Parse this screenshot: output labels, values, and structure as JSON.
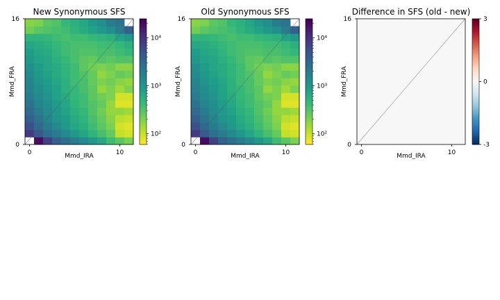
{
  "chart_data": [
    {
      "type": "heatmap",
      "title": "New Synonymous SFS",
      "xlabel": "Mmd_IRA",
      "ylabel": "Mmd_FRA",
      "x_ticks": [
        "0",
        "10"
      ],
      "y_ticks": [
        "0",
        "16"
      ],
      "x_range": [
        0,
        11
      ],
      "y_range": [
        0,
        16
      ],
      "n_cols": 12,
      "n_rows": 17,
      "colorscale": "viridis_r",
      "log_scale": true,
      "color_range": [
        60,
        25000
      ],
      "colorbar_ticks": [
        {
          "value": 100,
          "label": "10²"
        },
        {
          "value": 1000,
          "label": "10³"
        },
        {
          "value": 10000,
          "label": "10⁴"
        }
      ],
      "masked_cells": [
        [
          0,
          0
        ],
        [
          16,
          11
        ]
      ],
      "values_exponent": [
        [
          null,
          4.3,
          3.9,
          3.6,
          3.45,
          3.3,
          3.15,
          3.0,
          2.85,
          2.6,
          2.45,
          2.3
        ],
        [
          3.95,
          3.65,
          3.45,
          3.3,
          3.15,
          3.0,
          2.85,
          2.7,
          2.55,
          2.4,
          2.0,
          1.95
        ],
        [
          3.75,
          3.5,
          3.3,
          3.15,
          3.0,
          2.85,
          2.75,
          2.6,
          2.45,
          2.3,
          1.95,
          1.9
        ],
        [
          3.6,
          3.4,
          3.2,
          3.05,
          2.95,
          2.8,
          2.7,
          2.55,
          2.4,
          2.25,
          2.05,
          2.0
        ],
        [
          3.5,
          3.3,
          3.15,
          3.0,
          2.9,
          2.75,
          2.65,
          2.5,
          2.35,
          2.2,
          2.2,
          2.15
        ],
        [
          3.4,
          3.2,
          3.1,
          2.95,
          2.85,
          2.7,
          2.6,
          2.5,
          2.4,
          2.2,
          1.9,
          1.9
        ],
        [
          3.3,
          3.15,
          3.05,
          2.9,
          2.8,
          2.65,
          2.6,
          2.45,
          2.35,
          2.3,
          1.95,
          1.95
        ],
        [
          3.25,
          3.1,
          3.0,
          2.9,
          2.75,
          2.65,
          2.55,
          2.45,
          2.2,
          2.3,
          2.15,
          2.3
        ],
        [
          3.2,
          3.05,
          2.95,
          2.85,
          2.75,
          2.6,
          2.55,
          2.4,
          2.3,
          2.35,
          2.25,
          2.2
        ],
        [
          3.15,
          3.0,
          2.9,
          2.8,
          2.7,
          2.6,
          2.5,
          2.4,
          2.2,
          2.3,
          2.4,
          2.35
        ],
        [
          3.1,
          2.95,
          2.85,
          2.8,
          2.7,
          2.6,
          2.45,
          2.35,
          2.3,
          2.35,
          2.25,
          2.25
        ],
        [
          3.0,
          2.9,
          2.85,
          2.75,
          2.65,
          2.55,
          2.45,
          2.4,
          2.5,
          2.45,
          2.5,
          2.5
        ],
        [
          2.95,
          2.85,
          2.8,
          2.7,
          2.6,
          2.55,
          2.5,
          2.5,
          2.55,
          2.55,
          2.6,
          2.65
        ],
        [
          2.85,
          2.8,
          2.75,
          2.65,
          2.6,
          2.55,
          2.55,
          2.55,
          2.6,
          2.6,
          2.65,
          2.75
        ],
        [
          2.7,
          2.7,
          2.65,
          2.6,
          2.55,
          2.6,
          2.6,
          2.65,
          2.7,
          2.75,
          2.9,
          3.0
        ],
        [
          2.35,
          2.45,
          2.5,
          2.55,
          2.6,
          2.7,
          2.8,
          2.9,
          3.0,
          3.1,
          3.3,
          3.6
        ],
        [
          2.25,
          2.3,
          2.45,
          2.5,
          2.65,
          2.75,
          2.85,
          3.0,
          3.1,
          3.3,
          3.4,
          null
        ]
      ]
    },
    {
      "type": "heatmap",
      "title": "Old Synonymous SFS",
      "xlabel": "Mmd_IRA",
      "ylabel": "Mmd_FRA",
      "x_ticks": [
        "0",
        "10"
      ],
      "y_ticks": [
        "0",
        "16"
      ],
      "x_range": [
        0,
        11
      ],
      "y_range": [
        0,
        16
      ],
      "n_cols": 12,
      "n_rows": 17,
      "colorscale": "viridis_r",
      "log_scale": true,
      "color_range": [
        60,
        25000
      ],
      "colorbar_ticks": [
        {
          "value": 100,
          "label": "10²"
        },
        {
          "value": 1000,
          "label": "10³"
        },
        {
          "value": 10000,
          "label": "10⁴"
        }
      ],
      "masked_cells": [
        [
          0,
          0
        ],
        [
          16,
          11
        ]
      ],
      "values_exponent": [
        [
          null,
          4.3,
          3.9,
          3.6,
          3.45,
          3.3,
          3.15,
          3.0,
          2.85,
          2.6,
          2.45,
          2.3
        ],
        [
          3.95,
          3.65,
          3.45,
          3.3,
          3.15,
          3.0,
          2.85,
          2.7,
          2.55,
          2.4,
          2.0,
          1.95
        ],
        [
          3.75,
          3.5,
          3.3,
          3.15,
          3.0,
          2.85,
          2.75,
          2.6,
          2.45,
          2.3,
          1.95,
          1.9
        ],
        [
          3.6,
          3.4,
          3.2,
          3.05,
          2.95,
          2.8,
          2.7,
          2.55,
          2.4,
          2.25,
          2.05,
          2.0
        ],
        [
          3.5,
          3.3,
          3.15,
          3.0,
          2.9,
          2.75,
          2.65,
          2.5,
          2.35,
          2.2,
          2.2,
          2.15
        ],
        [
          3.4,
          3.2,
          3.1,
          2.95,
          2.85,
          2.7,
          2.6,
          2.5,
          2.4,
          2.2,
          1.9,
          1.9
        ],
        [
          3.3,
          3.15,
          3.05,
          2.9,
          2.8,
          2.65,
          2.6,
          2.45,
          2.35,
          2.3,
          1.95,
          1.95
        ],
        [
          3.25,
          3.1,
          3.0,
          2.9,
          2.75,
          2.65,
          2.55,
          2.45,
          2.2,
          2.3,
          2.15,
          2.3
        ],
        [
          3.2,
          3.05,
          2.95,
          2.85,
          2.75,
          2.6,
          2.55,
          2.4,
          2.3,
          2.35,
          2.25,
          2.2
        ],
        [
          3.15,
          3.0,
          2.9,
          2.8,
          2.7,
          2.6,
          2.5,
          2.4,
          2.2,
          2.3,
          2.4,
          2.35
        ],
        [
          3.1,
          2.95,
          2.85,
          2.8,
          2.7,
          2.6,
          2.45,
          2.35,
          2.3,
          2.35,
          2.25,
          2.25
        ],
        [
          3.0,
          2.9,
          2.85,
          2.75,
          2.65,
          2.55,
          2.45,
          2.4,
          2.5,
          2.45,
          2.5,
          2.5
        ],
        [
          2.95,
          2.85,
          2.8,
          2.7,
          2.6,
          2.55,
          2.5,
          2.5,
          2.55,
          2.55,
          2.6,
          2.65
        ],
        [
          2.85,
          2.8,
          2.75,
          2.65,
          2.6,
          2.55,
          2.55,
          2.55,
          2.6,
          2.6,
          2.65,
          2.75
        ],
        [
          2.7,
          2.7,
          2.65,
          2.6,
          2.55,
          2.6,
          2.6,
          2.65,
          2.7,
          2.75,
          2.9,
          3.0
        ],
        [
          2.35,
          2.45,
          2.5,
          2.55,
          2.6,
          2.7,
          2.8,
          2.9,
          3.0,
          3.1,
          3.3,
          3.6
        ],
        [
          2.25,
          2.3,
          2.45,
          2.5,
          2.65,
          2.75,
          2.85,
          3.0,
          3.1,
          3.3,
          3.4,
          null
        ]
      ]
    },
    {
      "type": "heatmap",
      "title": "Difference in SFS (old - new)",
      "xlabel": "Mmd_IRA",
      "ylabel": "Mmd_FRA",
      "x_ticks": [
        "0",
        "10"
      ],
      "y_ticks": [
        "0",
        "16"
      ],
      "x_range": [
        0,
        11
      ],
      "y_range": [
        0,
        16
      ],
      "colorscale": "RdBu_r",
      "color_range": [
        -3,
        3
      ],
      "colorbar_ticks": [
        {
          "value": -3,
          "label": "-3"
        },
        {
          "value": 0,
          "label": "0"
        },
        {
          "value": 3,
          "label": "3"
        }
      ],
      "uniform_value": 0
    }
  ]
}
